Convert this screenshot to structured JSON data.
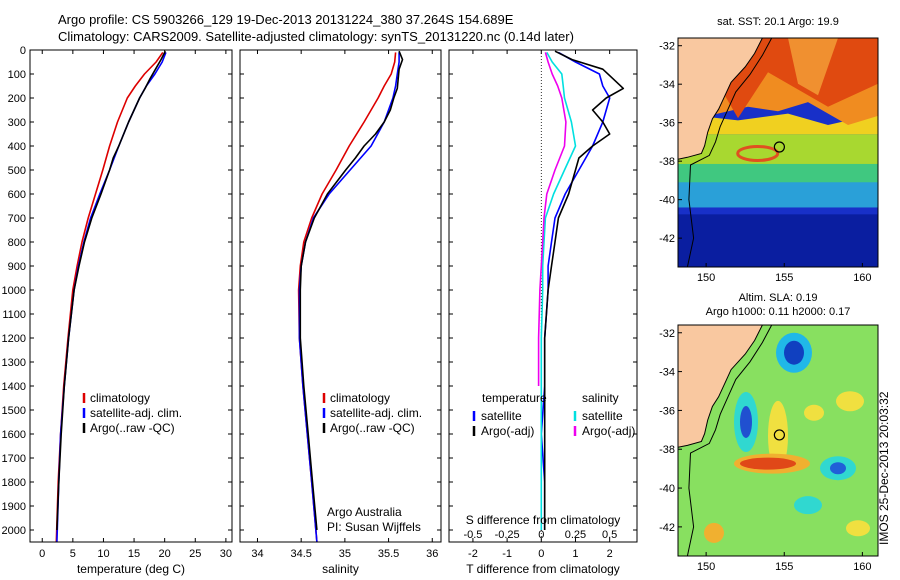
{
  "header": {
    "line1": "Argo profile: CS 5903266_129 19-Dec-2013 20131224_380 37.264S 154.689E",
    "line2": "Climatology: CARS2009. Satellite-adjusted climatology: synTS_20131220.nc (0.14d later)"
  },
  "side_label": "IMOS 25-Dec-2013 20:03:32",
  "colors": {
    "climatology": "#dd0000",
    "satellite": "#0000ff",
    "argo": "#000000",
    "salinity_satellite": "#00e0e0",
    "salinity_argo": "#ee00ee",
    "land": "#f9c8a0",
    "coast": "#000000"
  },
  "chart_data": [
    {
      "type": "line",
      "name": "temperature-profile",
      "xlabel": "temperature (deg C)",
      "ylabel": "",
      "xlim": [
        -2,
        31
      ],
      "ylim": [
        2050,
        0
      ],
      "xticks": [
        0,
        5,
        10,
        15,
        20,
        25,
        30
      ],
      "yticks": [
        0,
        100,
        200,
        300,
        400,
        500,
        600,
        700,
        800,
        900,
        1000,
        1100,
        1200,
        1300,
        1400,
        1500,
        1600,
        1700,
        1800,
        1900,
        2000
      ],
      "legend": [
        "climatology",
        "satellite-adj. clim.",
        "Argo(..raw -QC)"
      ],
      "legend_position": "lower-center",
      "series": [
        {
          "name": "climatology",
          "depth": [
            10,
            50,
            100,
            150,
            200,
            300,
            400,
            500,
            600,
            700,
            800,
            900,
            1000,
            1200,
            1400,
            1600,
            1800,
            2050
          ],
          "values": [
            19.7,
            18.6,
            16.7,
            15.2,
            13.9,
            12.3,
            11.0,
            9.9,
            8.7,
            7.5,
            6.5,
            5.7,
            5.0,
            4.2,
            3.5,
            3.0,
            2.6,
            2.3
          ]
        },
        {
          "name": "satellite-adj. clim.",
          "depth": [
            10,
            50,
            100,
            150,
            200,
            300,
            400,
            500,
            600,
            700,
            800,
            900,
            1000,
            1200,
            1400,
            1600,
            1800,
            2050
          ],
          "values": [
            20.2,
            19.6,
            18.4,
            17.0,
            15.9,
            14.1,
            12.5,
            11.0,
            9.4,
            7.9,
            6.8,
            5.9,
            5.2,
            4.3,
            3.6,
            3.0,
            2.7,
            2.4
          ]
        },
        {
          "name": "Argo(..raw -QC)",
          "depth": [
            5,
            40,
            80,
            120,
            160,
            200,
            250,
            300,
            350,
            400,
            450,
            500,
            600,
            700,
            800,
            900,
            1000,
            1200,
            1400,
            1600,
            1800,
            2000
          ],
          "values": [
            20.1,
            19.4,
            18.5,
            17.6,
            16.8,
            15.9,
            15.0,
            14.1,
            13.3,
            12.5,
            11.6,
            11.0,
            9.6,
            8.1,
            6.9,
            6.0,
            5.2,
            4.3,
            3.6,
            3.1,
            2.7,
            2.4
          ]
        }
      ]
    },
    {
      "type": "line",
      "name": "salinity-profile",
      "xlabel": "salinity",
      "xlim": [
        33.8,
        36.1
      ],
      "ylim": [
        2050,
        0
      ],
      "xticks": [
        34,
        34.5,
        35,
        35.5,
        36
      ],
      "xticklabels": [
        "34",
        "34.5",
        "35",
        "35.5",
        "36"
      ],
      "legend": [
        "climatology",
        "satellite-adj. clim.",
        "Argo(..raw -QC)"
      ],
      "annotation": [
        "Argo Australia",
        "PI: Susan Wijffels"
      ],
      "series": [
        {
          "name": "climatology",
          "depth": [
            10,
            50,
            100,
            150,
            200,
            300,
            400,
            500,
            600,
            700,
            800,
            900,
            1000,
            1200,
            1400,
            1600,
            1800,
            2050
          ],
          "values": [
            35.58,
            35.57,
            35.53,
            35.45,
            35.38,
            35.22,
            35.05,
            34.9,
            34.74,
            34.62,
            34.53,
            34.49,
            34.47,
            34.48,
            34.52,
            34.57,
            34.62,
            34.68
          ]
        },
        {
          "name": "satellite-adj. clim.",
          "depth": [
            10,
            50,
            100,
            150,
            200,
            300,
            400,
            500,
            600,
            700,
            800,
            900,
            1000,
            1200,
            1400,
            1600,
            1800,
            2050
          ],
          "values": [
            35.62,
            35.62,
            35.6,
            35.58,
            35.55,
            35.45,
            35.3,
            35.06,
            34.82,
            34.64,
            34.55,
            34.5,
            34.48,
            34.48,
            34.52,
            34.57,
            34.62,
            34.68
          ]
        },
        {
          "name": "Argo(..raw -QC)",
          "depth": [
            5,
            40,
            80,
            120,
            160,
            200,
            250,
            300,
            350,
            400,
            450,
            500,
            600,
            700,
            800,
            900,
            1000,
            1200,
            1400,
            1600,
            1800,
            2000
          ],
          "values": [
            35.62,
            35.66,
            35.62,
            35.61,
            35.6,
            35.56,
            35.52,
            35.45,
            35.35,
            35.22,
            35.12,
            35.01,
            34.8,
            34.65,
            34.55,
            34.5,
            34.49,
            34.49,
            34.53,
            34.58,
            34.63,
            34.68
          ]
        }
      ]
    },
    {
      "type": "line",
      "name": "difference-profile",
      "xlabel": "T difference from climatology",
      "x2label": "S difference from climatology",
      "xlim": [
        -2.7,
        2.8
      ],
      "x2lim": [
        -0.675,
        0.7
      ],
      "ylim": [
        2050,
        0
      ],
      "xticks": [
        -2,
        -1,
        0,
        1,
        2
      ],
      "x2ticks": [
        -0.5,
        -0.25,
        0,
        0.25,
        0.5
      ],
      "x2ticklabels": [
        "-0.5",
        "-0.25",
        "0",
        "0.25",
        "0.5"
      ],
      "legend_temperature": {
        "title": "temperature",
        "items": [
          "satellite",
          "Argo(-adj)"
        ]
      },
      "legend_salinity": {
        "title": "salinity",
        "items": [
          "satellite",
          "Argo(-adj)"
        ]
      },
      "series": [
        {
          "name": "temperature satellite",
          "axis": "T",
          "depth": [
            10,
            50,
            100,
            150,
            200,
            300,
            400,
            500,
            600,
            700,
            800,
            900,
            1000,
            1200,
            1400,
            1600,
            1800,
            2000
          ],
          "values": [
            0.5,
            1.0,
            1.7,
            1.8,
            2.0,
            1.8,
            1.5,
            1.1,
            0.7,
            0.4,
            0.3,
            0.2,
            0.2,
            0.1,
            0.1,
            0.0,
            0.1,
            0.1
          ]
        },
        {
          "name": "temperature Argo(-adj)",
          "axis": "T",
          "depth": [
            5,
            40,
            80,
            120,
            160,
            200,
            250,
            300,
            350,
            400,
            450,
            500,
            600,
            700,
            800,
            900,
            1000,
            1200,
            1400,
            1600,
            1800,
            2000
          ],
          "values": [
            0.4,
            0.9,
            1.8,
            2.1,
            2.4,
            1.9,
            1.5,
            1.8,
            2.0,
            1.5,
            1.1,
            1.0,
            0.8,
            0.5,
            0.4,
            0.3,
            0.2,
            0.1,
            0.1,
            0.1,
            0.1,
            0.1
          ]
        },
        {
          "name": "salinity satellite",
          "axis": "S",
          "depth": [
            10,
            50,
            100,
            150,
            200,
            300,
            400,
            500,
            600,
            700,
            800,
            900,
            1000,
            1200,
            1400,
            1600,
            1800,
            2000
          ],
          "values": [
            0.04,
            0.08,
            0.15,
            0.16,
            0.17,
            0.22,
            0.25,
            0.17,
            0.09,
            0.03,
            0.02,
            0.01,
            0.01,
            0.0,
            0.0,
            0.0,
            0.0,
            0.0
          ]
        },
        {
          "name": "salinity Argo(-adj)",
          "axis": "S",
          "depth": [
            10,
            50,
            100,
            150,
            200,
            300,
            400,
            500,
            600,
            700,
            800,
            900,
            1000,
            1200,
            1400
          ],
          "values": [
            0.03,
            0.05,
            0.08,
            0.12,
            0.15,
            0.18,
            0.17,
            0.1,
            0.04,
            0.02,
            0.01,
            0.0,
            -0.01,
            -0.02,
            -0.02
          ]
        }
      ]
    },
    {
      "type": "heatmap",
      "name": "sst-map",
      "title": "sat. SST: 20.1  Argo: 19.9",
      "xlim": [
        148.2,
        161
      ],
      "ylim": [
        -43.5,
        -31.6
      ],
      "xticks": [
        150,
        155,
        160
      ],
      "yticks": [
        -32,
        -34,
        -36,
        -38,
        -40,
        -42
      ],
      "argo_position": {
        "lon": 154.689,
        "lat": -37.264
      }
    },
    {
      "type": "heatmap",
      "name": "sla-map",
      "title": "Altim. SLA: 0.19",
      "subtitle": "Argo h1000: 0.11 h2000: 0.17",
      "xlim": [
        148.2,
        161
      ],
      "ylim": [
        -43.5,
        -31.6
      ],
      "xticks": [
        150,
        155,
        160
      ],
      "yticks": [
        -32,
        -34,
        -36,
        -38,
        -40,
        -42
      ],
      "argo_position": {
        "lon": 154.689,
        "lat": -37.264
      }
    }
  ]
}
